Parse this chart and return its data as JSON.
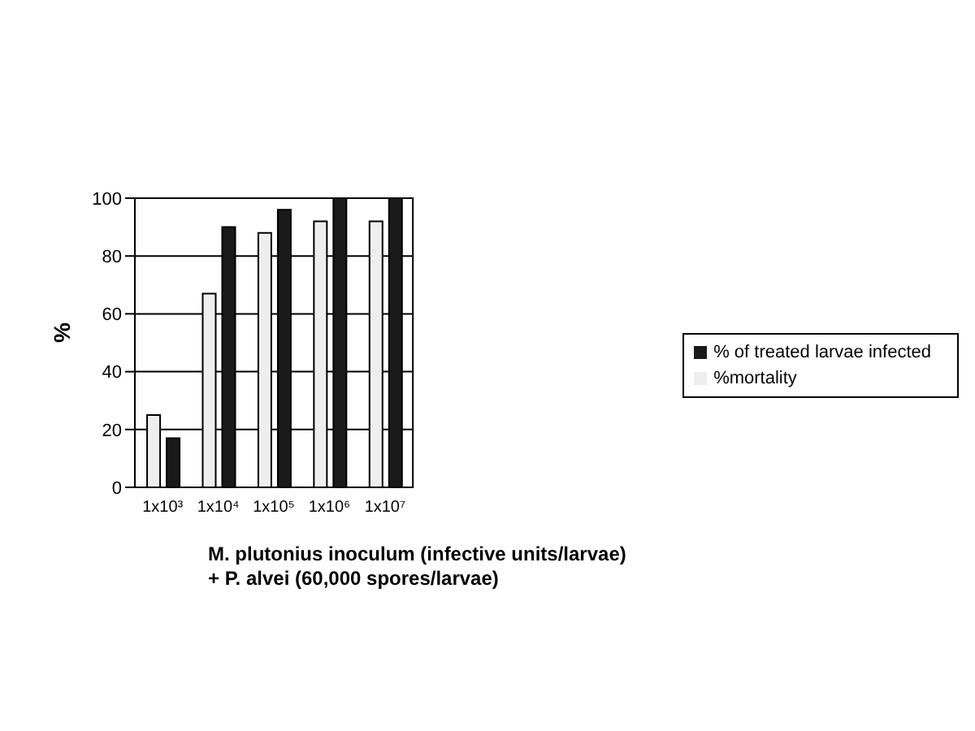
{
  "chart_data": {
    "type": "bar",
    "categories": [
      "1x10³",
      "1x10⁴",
      "1x10⁵",
      "1x10⁶",
      "1x10⁷"
    ],
    "series": [
      {
        "name": "%mortality",
        "color": "#eeeeee",
        "values": [
          25,
          67,
          88,
          92,
          92
        ]
      },
      {
        "name": "% of treated larvae infected",
        "color": "#1a1a1a",
        "values": [
          17,
          90,
          96,
          100,
          100
        ]
      }
    ],
    "xlabel": "M. plutonius inoculum (infective units/larvae)\n+ P. alvei  (60,000 spores/larvae)",
    "ylabel": "%",
    "ylim": [
      0,
      100
    ],
    "yticks": [
      0,
      20,
      40,
      60,
      80,
      100
    ],
    "grid": "y",
    "legend": "right"
  }
}
